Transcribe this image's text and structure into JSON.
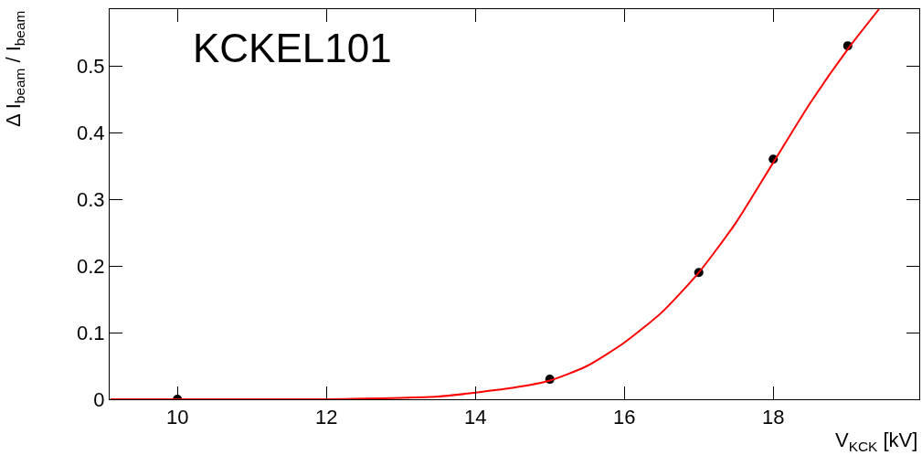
{
  "chart_data": {
    "type": "scatter",
    "xlabel": "V$_{KCK}$ [kV]",
    "ylabel": "Δ I$_{beam}$ / I$_{beam}$",
    "annotations": [
      "KCKEL101"
    ],
    "x": [
      10,
      15,
      17,
      18,
      19
    ],
    "series": [
      {
        "color": "#000000",
        "values": [
          0,
          0.03,
          0.19,
          0.36,
          0.53
        ],
        "marker": "circle"
      },
      {
        "type": "line",
        "color": "#ff0000",
        "x": [
          9.1,
          11,
          12,
          12.5,
          13,
          13.5,
          14,
          14.5,
          15,
          15.5,
          16,
          16.5,
          17,
          17.5,
          18,
          18.5,
          19,
          19.42
        ],
        "values": [
          0,
          0,
          0,
          0.001,
          0.002,
          0.004,
          0.01,
          0.017,
          0.028,
          0.05,
          0.085,
          0.13,
          0.19,
          0.265,
          0.355,
          0.445,
          0.525,
          0.585
        ],
        "line_style": "solid",
        "marker": "none"
      }
    ],
    "xlim": [
      9.09,
      19.96
    ],
    "xticks": [
      10,
      12,
      14,
      16,
      18
    ],
    "ylim": [
      0,
      0.585
    ],
    "yticks": [
      0,
      0.1,
      0.2,
      0.3,
      0.4,
      0.5
    ],
    "grid": false
  }
}
